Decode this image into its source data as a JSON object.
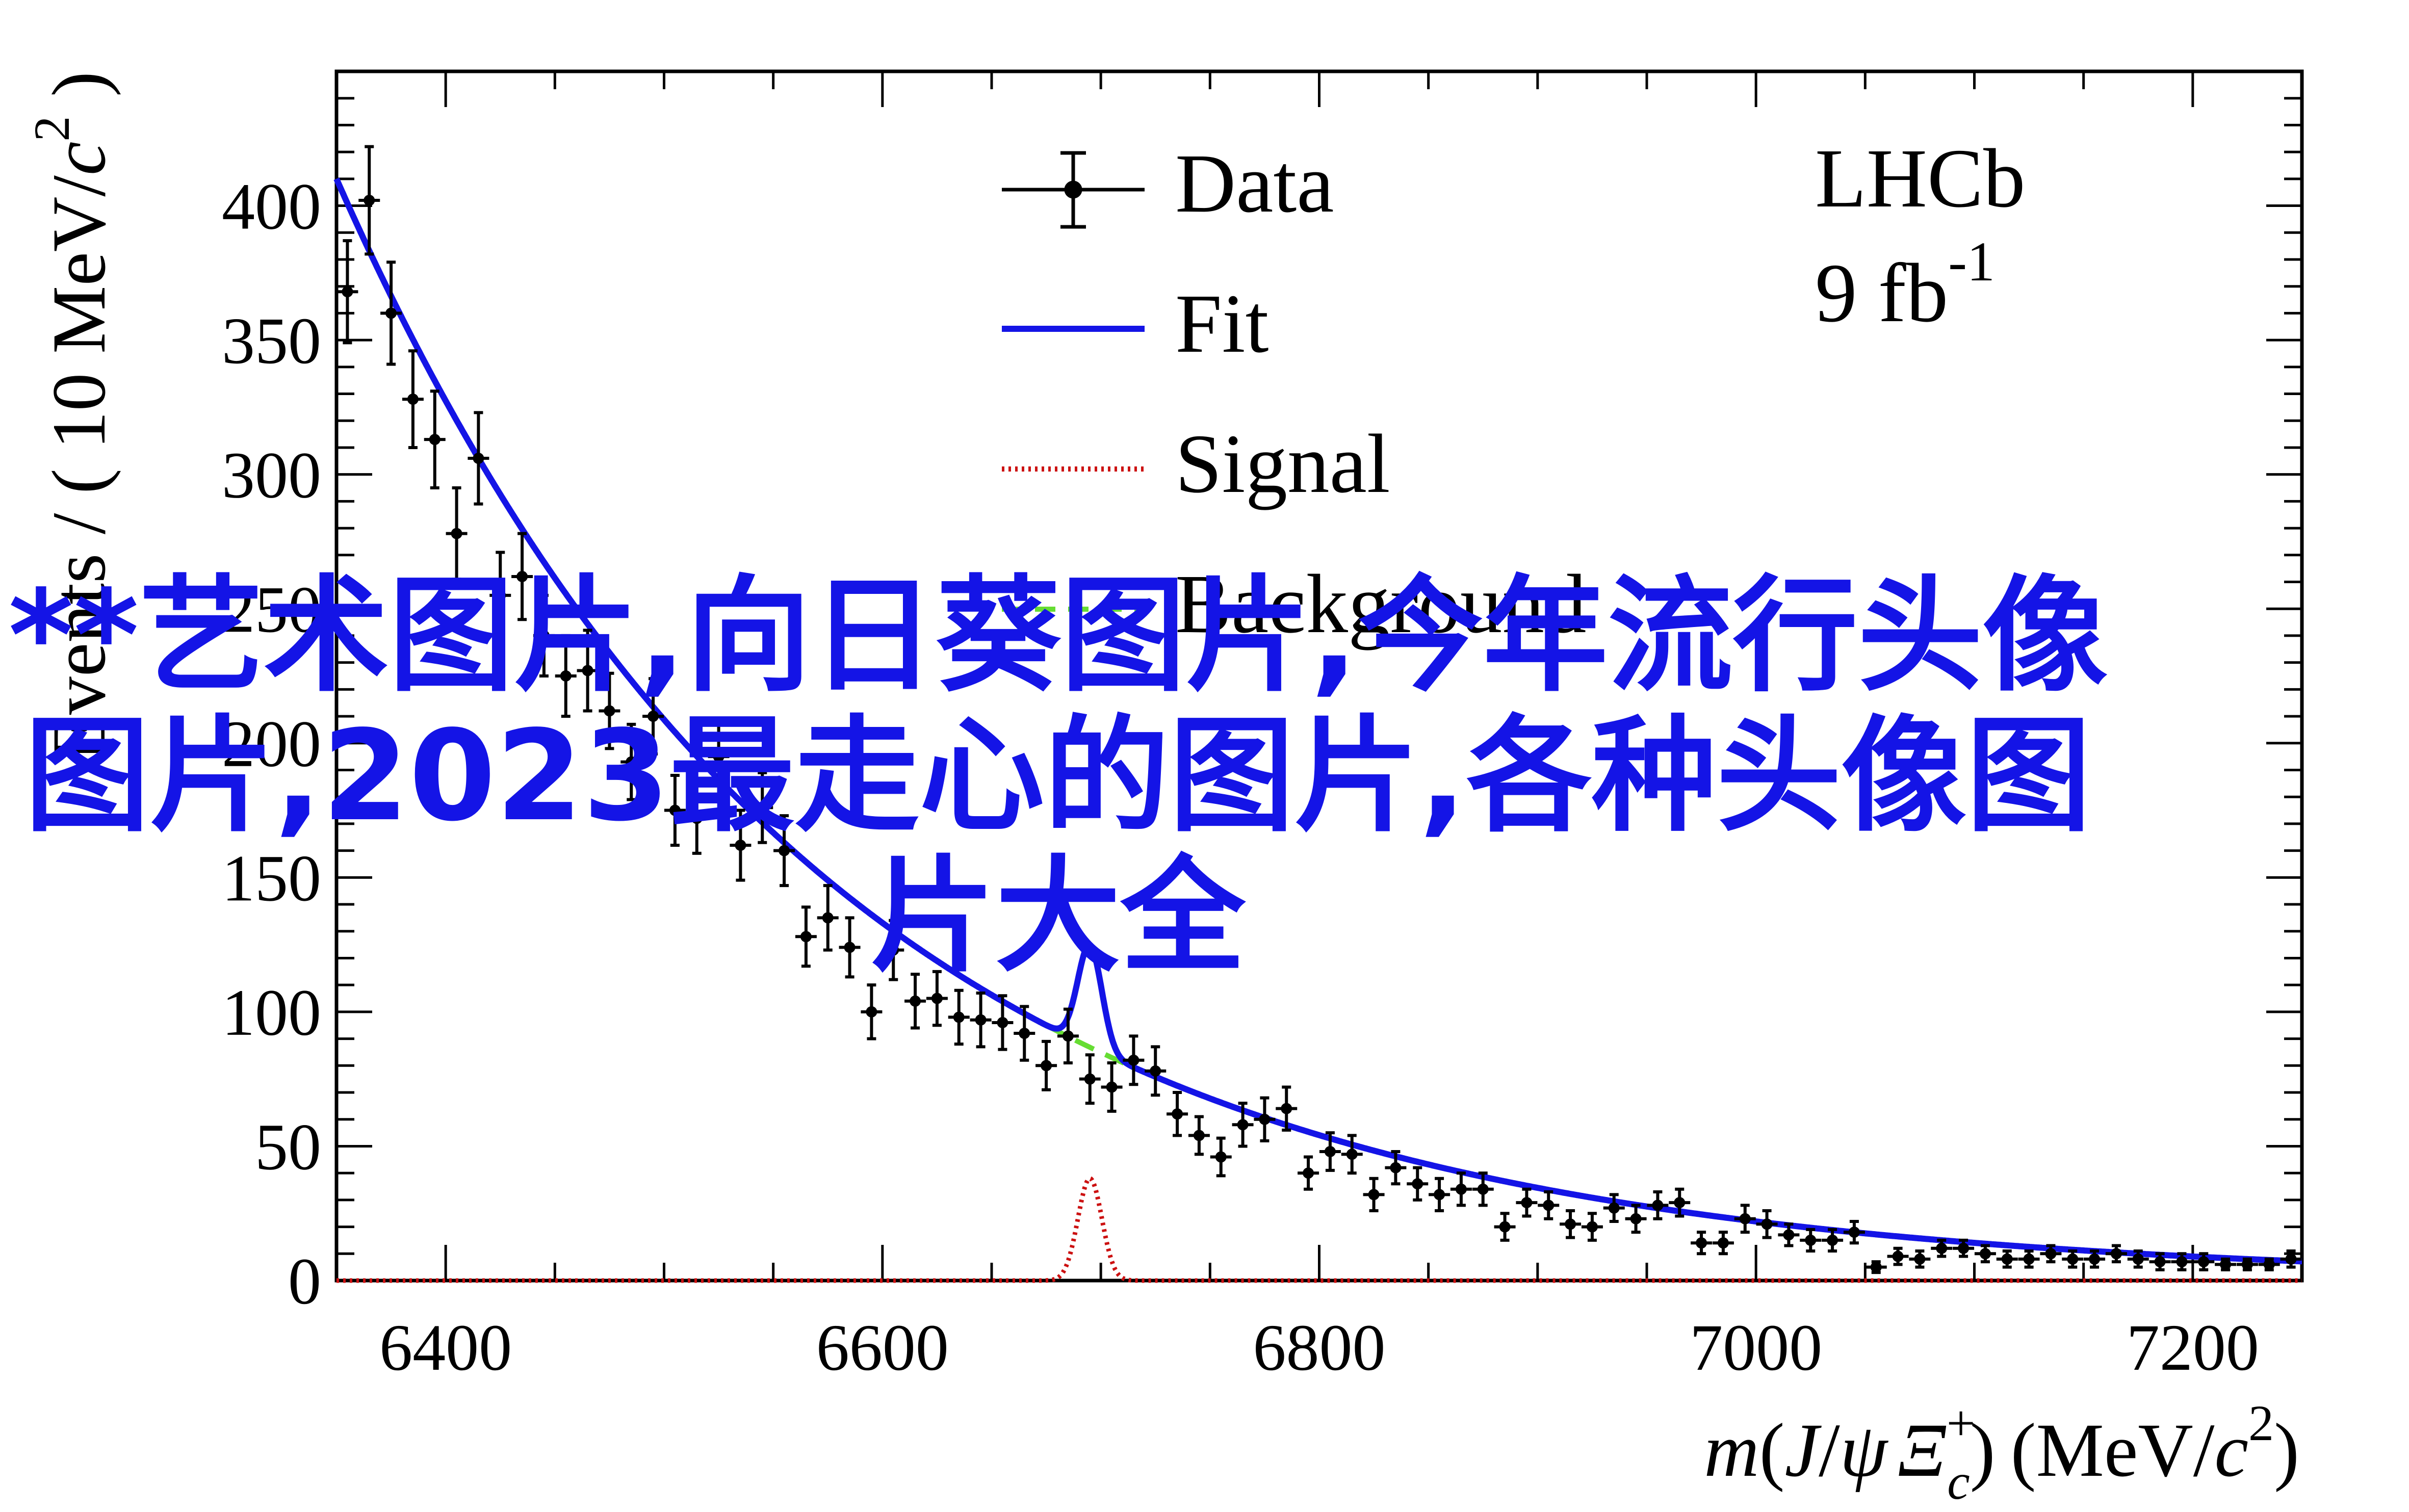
{
  "chart_data": {
    "type": "scatter",
    "experiment": {
      "name": "LHCb",
      "lumi_value": "9 fb",
      "lumi_exp": "-1"
    },
    "xlabel": {
      "m": "m",
      "open": "(",
      "J": "J",
      "slash": "/",
      "psi": "ψ",
      "xi": "Ξ",
      "sup": "+",
      "sub": "c",
      "close": ")",
      "units": "(MeV/",
      "c": "c",
      "c_exp": "2",
      "units_close": ")"
    },
    "ylabel": {
      "main": "Events / ( 10 MeV/",
      "c": "c",
      "c_exp": "2",
      "close": " )"
    },
    "xlim": [
      6350,
      7250
    ],
    "ylim": [
      0,
      450
    ],
    "xticks": [
      6400,
      6600,
      6800,
      7000,
      7200
    ],
    "yticks": [
      0,
      50,
      100,
      150,
      200,
      250,
      300,
      350,
      400
    ],
    "legend": {
      "position": "top-center",
      "entries": [
        {
          "label": "Data",
          "style": "errorbar",
          "color": "#000000"
        },
        {
          "label": "Fit",
          "style": "solid",
          "color": "#1414e6"
        },
        {
          "label": "Signal",
          "style": "dotted",
          "color": "#cc1111"
        },
        {
          "label": "Background",
          "style": "dashed",
          "color": "#66dd33"
        }
      ]
    },
    "series": [
      {
        "name": "Data",
        "x": [
          6355,
          6365,
          6375,
          6385,
          6395,
          6405,
          6415,
          6425,
          6435,
          6445,
          6455,
          6465,
          6475,
          6485,
          6495,
          6505,
          6515,
          6525,
          6535,
          6545,
          6555,
          6565,
          6575,
          6585,
          6595,
          6605,
          6615,
          6625,
          6635,
          6645,
          6655,
          6665,
          6675,
          6685,
          6695,
          6705,
          6715,
          6725,
          6735,
          6745,
          6755,
          6765,
          6775,
          6785,
          6795,
          6805,
          6815,
          6825,
          6835,
          6845,
          6855,
          6865,
          6875,
          6885,
          6895,
          6905,
          6915,
          6925,
          6935,
          6945,
          6955,
          6965,
          6975,
          6985,
          6995,
          7005,
          7015,
          7025,
          7035,
          7045,
          7055,
          7065,
          7075,
          7085,
          7095,
          7105,
          7115,
          7125,
          7135,
          7145,
          7155,
          7165,
          7175,
          7185,
          7195,
          7205,
          7215,
          7225,
          7235,
          7245
        ],
        "y": [
          368,
          402,
          360,
          328,
          313,
          278,
          306,
          255,
          262,
          240,
          225,
          227,
          212,
          193,
          210,
          175,
          172,
          195,
          162,
          176,
          160,
          128,
          135,
          124,
          100,
          123,
          104,
          105,
          98,
          97,
          96,
          92,
          80,
          91,
          75,
          72,
          82,
          78,
          62,
          54,
          46,
          58,
          60,
          64,
          40,
          48,
          47,
          32,
          42,
          36,
          32,
          34,
          34,
          20,
          29,
          28,
          21,
          20,
          27,
          23,
          28,
          29,
          14,
          14,
          23,
          21,
          17,
          15,
          15,
          18,
          5,
          9,
          8,
          12,
          12,
          10,
          8,
          8,
          10,
          8,
          8,
          10,
          8,
          7,
          7,
          7,
          6,
          6,
          6,
          8
        ],
        "err": [
          19,
          20,
          19,
          18,
          18,
          17,
          17,
          16,
          16,
          15,
          15,
          15,
          14,
          14,
          14,
          13,
          13,
          14,
          13,
          13,
          13,
          11,
          12,
          11,
          10,
          11,
          10,
          10,
          10,
          10,
          10,
          10,
          9,
          10,
          9,
          9,
          9,
          9,
          8,
          7,
          7,
          8,
          8,
          8,
          6,
          7,
          7,
          6,
          6,
          6,
          6,
          6,
          6,
          5,
          5,
          5,
          5,
          5,
          5,
          5,
          5,
          5,
          4,
          4,
          5,
          5,
          4,
          4,
          4,
          4,
          2,
          3,
          3,
          3,
          3,
          3,
          3,
          3,
          3,
          3,
          3,
          3,
          3,
          3,
          3,
          3,
          2,
          2,
          2,
          3
        ]
      },
      {
        "name": "Fit",
        "model": {
          "bkg_amp": 410,
          "bkg_x0": 6350,
          "bkg_slope": 0.0045,
          "sig_amp": 38,
          "sig_mean": 6695,
          "sig_sigma": 5.5
        }
      },
      {
        "name": "Signal",
        "model": {
          "amp": 38,
          "mean": 6695,
          "sigma": 5.5
        }
      },
      {
        "name": "Background",
        "model": {
          "amp": 410,
          "x0": 6350,
          "slope": 0.0045
        }
      }
    ]
  },
  "watermark": "**艺术图片,向日葵图片,今年流行头像图片,2023最走心的图片,各种头像图片大全",
  "colors": {
    "fit": "#1414e6",
    "signal": "#cc1111",
    "background": "#66dd33",
    "data": "#000000",
    "watermark": "#1414e6"
  }
}
